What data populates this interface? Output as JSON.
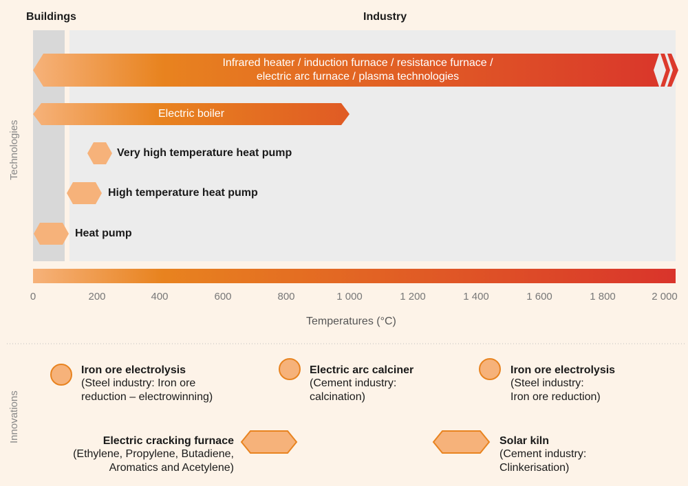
{
  "header": {
    "buildings": "Buildings",
    "industry": "Industry"
  },
  "axis_side_label": "Technologies",
  "technologies": [
    {
      "line1": "Infrared heater / induction furnace / resistance furnace /",
      "line2": "electric arc furnace / plasma technologies",
      "range_c": [
        0,
        2000
      ],
      "open_ended": true
    },
    {
      "label": "Electric boiler",
      "range_c": [
        0,
        1000
      ]
    },
    {
      "label": "Very high temperature heat pump",
      "range_c": [
        180,
        250
      ]
    },
    {
      "label": "High temperature heat pump",
      "range_c": [
        110,
        210
      ]
    },
    {
      "label": "Heat pump",
      "range_c": [
        0,
        110
      ]
    }
  ],
  "temperature_axis": {
    "ticks": [
      "0",
      "200",
      "400",
      "600",
      "800",
      "1 000",
      "1 200",
      "1 400",
      "1 600",
      "1 800",
      "2 000"
    ],
    "range_c": [
      0,
      2000
    ],
    "label": "Temperatures (°C)"
  },
  "innovations_label": "Innovations",
  "innovations": [
    {
      "title": "Iron ore electrolysis",
      "desc1": "(Steel industry: Iron ore",
      "desc2": "reduction – electrowinning)",
      "icon": "circle-icon"
    },
    {
      "title": "Electric arc calciner",
      "desc1": "(Cement industry:",
      "desc2": "calcination)",
      "icon": "circle-icon"
    },
    {
      "title": "Iron ore electrolysis",
      "desc1": "(Steel industry:",
      "desc2": "Iron ore reduction)",
      "icon": "circle-icon"
    },
    {
      "title": "Electric cracking furnace",
      "desc1": "(Ethylene, Propylene, Butadiene,",
      "desc2": "Aromatics and Acetylene)",
      "icon": "hexagon-icon"
    },
    {
      "title": "Solar kiln",
      "desc1": "(Cement industry:",
      "desc2": "Clinkerisation)",
      "icon": "hexagon-icon"
    }
  ],
  "colors": {
    "light_orange": "#f6b27a",
    "orange": "#e8831f",
    "red": "#d9342b",
    "panel_grey": "#ececec",
    "buildings_grey": "#d8d8d8"
  }
}
